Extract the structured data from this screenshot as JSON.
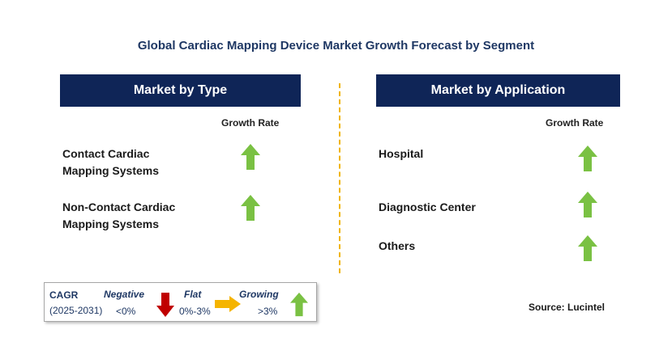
{
  "title": "Global Cardiac Mapping Device Market Growth Forecast by Segment",
  "left_panel": {
    "header": "Market by Type",
    "growth_label": "Growth Rate",
    "rows": [
      {
        "line1": "Contact Cardiac",
        "line2": "Mapping Systems",
        "trend": "growing"
      },
      {
        "line1": "Non-Contact Cardiac",
        "line2": "Mapping Systems",
        "trend": "growing"
      }
    ]
  },
  "right_panel": {
    "header": "Market by Application",
    "growth_label": "Growth Rate",
    "rows": [
      {
        "label": "Hospital",
        "trend": "growing"
      },
      {
        "label": "Diagnostic Center",
        "trend": "growing"
      },
      {
        "label": "Others",
        "trend": "growing"
      }
    ]
  },
  "legend": {
    "cagr": "CAGR",
    "period": "(2025-2031)",
    "negative_label": "Negative",
    "negative_value": "<0%",
    "flat_label": "Flat",
    "flat_value": "0%-3%",
    "growing_label": "Growing",
    "growing_value": ">3%"
  },
  "source": "Source: Lucintel",
  "colors": {
    "header_bg": "#0f2557",
    "title": "#1f3864",
    "growing_arrow": "#7ac143",
    "negative_arrow": "#c00000",
    "flat_arrow": "#f5b400",
    "divider": "#f0b400"
  }
}
